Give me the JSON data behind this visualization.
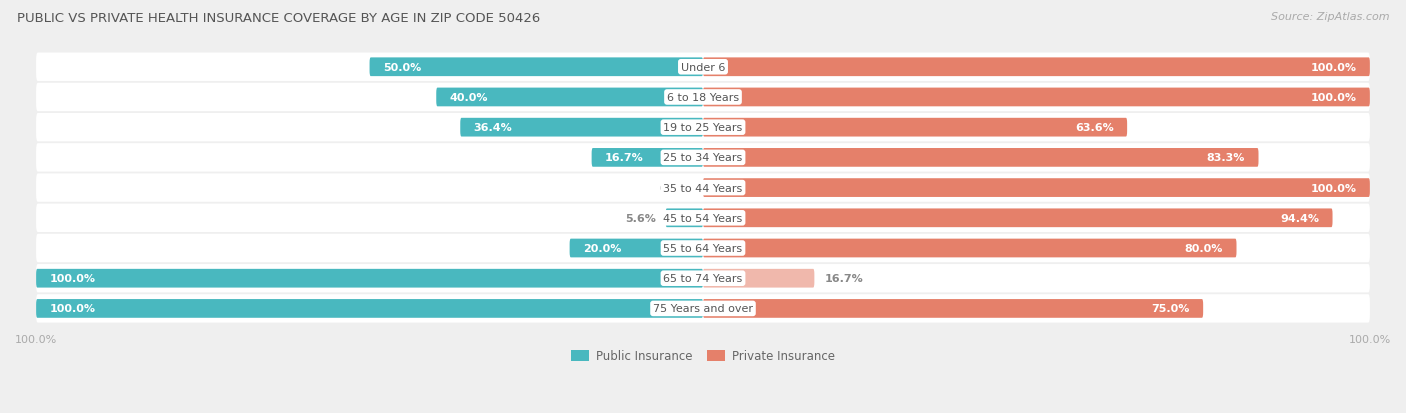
{
  "title": "PUBLIC VS PRIVATE HEALTH INSURANCE COVERAGE BY AGE IN ZIP CODE 50426",
  "source": "Source: ZipAtlas.com",
  "categories": [
    "Under 6",
    "6 to 18 Years",
    "19 to 25 Years",
    "25 to 34 Years",
    "35 to 44 Years",
    "45 to 54 Years",
    "55 to 64 Years",
    "65 to 74 Years",
    "75 Years and over"
  ],
  "public_values": [
    50.0,
    40.0,
    36.4,
    16.7,
    0.0,
    5.6,
    20.0,
    100.0,
    100.0
  ],
  "private_values": [
    100.0,
    100.0,
    63.6,
    83.3,
    100.0,
    94.4,
    80.0,
    16.7,
    75.0
  ],
  "public_color": "#49b8bf",
  "public_color_light": "#93d4d8",
  "private_color": "#e5806a",
  "private_color_light": "#f0b8ac",
  "bg_color": "#efefef",
  "row_bg_color": "#ffffff",
  "row_alt_color": "#e8e8e8",
  "title_color": "#555555",
  "white_label": "#ffffff",
  "dark_label": "#888888",
  "category_color": "#555555",
  "axis_label_color": "#aaaaaa",
  "legend_text_color": "#666666"
}
